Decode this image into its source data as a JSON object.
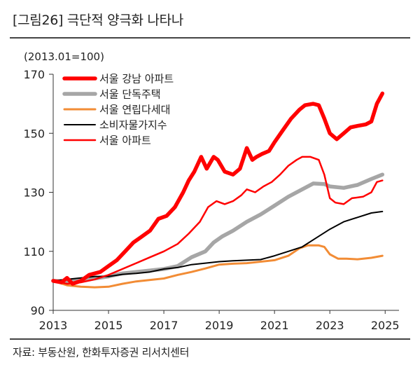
{
  "header": {
    "title": "[그림26]  극단적 양극화 나타나"
  },
  "footer": {
    "source": "자료: 부동산원, 한화투자증권 리서치센터"
  },
  "chart_data": {
    "type": "line",
    "unit_label": "(2013.01=100)",
    "xlabel": "",
    "ylabel": "",
    "xlim": [
      2013,
      2025.5
    ],
    "ylim": [
      90,
      170
    ],
    "x_ticks": [
      "2013",
      "2015",
      "2017",
      "2019",
      "2021",
      "2023",
      "2025"
    ],
    "y_ticks": [
      "90",
      "110",
      "130",
      "150",
      "170"
    ],
    "grid": false,
    "legend_position": "top-left",
    "series": [
      {
        "name": "서울 강남 아파트",
        "color": "#ff0000",
        "width": 5.5,
        "points": [
          [
            2013.0,
            100
          ],
          [
            2013.3,
            99.5
          ],
          [
            2013.5,
            101
          ],
          [
            2013.7,
            99
          ],
          [
            2014.0,
            100
          ],
          [
            2014.3,
            102
          ],
          [
            2014.7,
            103
          ],
          [
            2015.0,
            105
          ],
          [
            2015.3,
            107
          ],
          [
            2015.6,
            110
          ],
          [
            2015.9,
            113
          ],
          [
            2016.2,
            115
          ],
          [
            2016.5,
            117
          ],
          [
            2016.8,
            121
          ],
          [
            2017.1,
            122
          ],
          [
            2017.4,
            125
          ],
          [
            2017.7,
            130
          ],
          [
            2017.9,
            134
          ],
          [
            2018.1,
            137
          ],
          [
            2018.35,
            142
          ],
          [
            2018.55,
            138
          ],
          [
            2018.8,
            142
          ],
          [
            2018.95,
            141
          ],
          [
            2019.2,
            137
          ],
          [
            2019.5,
            136
          ],
          [
            2019.75,
            138
          ],
          [
            2020.0,
            145
          ],
          [
            2020.2,
            141
          ],
          [
            2020.35,
            142
          ],
          [
            2020.55,
            143
          ],
          [
            2020.8,
            144
          ],
          [
            2021.0,
            147
          ],
          [
            2021.3,
            151
          ],
          [
            2021.6,
            155
          ],
          [
            2021.9,
            158
          ],
          [
            2022.1,
            159.5
          ],
          [
            2022.4,
            160
          ],
          [
            2022.6,
            159.5
          ],
          [
            2022.8,
            155
          ],
          [
            2023.0,
            150
          ],
          [
            2023.25,
            148
          ],
          [
            2023.5,
            150
          ],
          [
            2023.75,
            152
          ],
          [
            2024.0,
            152.5
          ],
          [
            2024.3,
            153
          ],
          [
            2024.5,
            154
          ],
          [
            2024.7,
            160
          ],
          [
            2024.9,
            163.5
          ]
        ]
      },
      {
        "name": "서울 단독주택",
        "color": "#a6a6a6",
        "width": 5.5,
        "points": [
          [
            2013.0,
            100
          ],
          [
            2013.5,
            99.8
          ],
          [
            2014.0,
            100
          ],
          [
            2014.5,
            100.8
          ],
          [
            2015.0,
            101.5
          ],
          [
            2015.5,
            102.5
          ],
          [
            2016.0,
            103
          ],
          [
            2016.5,
            103.5
          ],
          [
            2017.0,
            104
          ],
          [
            2017.5,
            105
          ],
          [
            2018.0,
            108
          ],
          [
            2018.5,
            110
          ],
          [
            2018.8,
            113
          ],
          [
            2019.1,
            115
          ],
          [
            2019.5,
            117
          ],
          [
            2020.0,
            120
          ],
          [
            2020.5,
            122.5
          ],
          [
            2021.0,
            125.5
          ],
          [
            2021.5,
            128.5
          ],
          [
            2022.0,
            131
          ],
          [
            2022.4,
            133
          ],
          [
            2022.8,
            132.8
          ],
          [
            2023.0,
            132
          ],
          [
            2023.5,
            131.5
          ],
          [
            2024.0,
            132.5
          ],
          [
            2024.5,
            134.5
          ],
          [
            2024.9,
            136
          ]
        ]
      },
      {
        "name": "서울 연립다세대",
        "color": "#f28c35",
        "width": 3,
        "points": [
          [
            2013.0,
            100
          ],
          [
            2013.5,
            98.5
          ],
          [
            2014.0,
            98
          ],
          [
            2014.5,
            97.8
          ],
          [
            2015.0,
            98
          ],
          [
            2015.5,
            99
          ],
          [
            2016.0,
            99.8
          ],
          [
            2016.5,
            100.3
          ],
          [
            2017.0,
            100.8
          ],
          [
            2017.5,
            102
          ],
          [
            2018.0,
            103
          ],
          [
            2018.5,
            104.2
          ],
          [
            2019.0,
            105.5
          ],
          [
            2019.5,
            105.8
          ],
          [
            2020.0,
            106
          ],
          [
            2020.5,
            106.5
          ],
          [
            2021.0,
            107
          ],
          [
            2021.5,
            108.5
          ],
          [
            2021.9,
            111
          ],
          [
            2022.2,
            112
          ],
          [
            2022.6,
            112
          ],
          [
            2022.8,
            111.5
          ],
          [
            2023.0,
            109
          ],
          [
            2023.3,
            107.5
          ],
          [
            2023.6,
            107.5
          ],
          [
            2024.0,
            107.3
          ],
          [
            2024.5,
            107.8
          ],
          [
            2024.9,
            108.5
          ]
        ]
      },
      {
        "name": "소비자물가지수",
        "color": "#000000",
        "width": 2,
        "points": [
          [
            2013.0,
            100
          ],
          [
            2013.5,
            100.5
          ],
          [
            2014.0,
            101
          ],
          [
            2014.5,
            101.5
          ],
          [
            2015.0,
            101.5
          ],
          [
            2015.5,
            102.2
          ],
          [
            2016.0,
            102.5
          ],
          [
            2016.5,
            103
          ],
          [
            2017.0,
            104
          ],
          [
            2017.5,
            104.5
          ],
          [
            2018.0,
            105.5
          ],
          [
            2018.5,
            106
          ],
          [
            2019.0,
            106.5
          ],
          [
            2019.5,
            106.8
          ],
          [
            2020.0,
            107
          ],
          [
            2020.5,
            107.2
          ],
          [
            2021.0,
            108.5
          ],
          [
            2021.5,
            110
          ],
          [
            2022.0,
            111.5
          ],
          [
            2022.5,
            114.5
          ],
          [
            2023.0,
            117.5
          ],
          [
            2023.5,
            120
          ],
          [
            2024.0,
            121.5
          ],
          [
            2024.5,
            123
          ],
          [
            2024.9,
            123.5
          ]
        ]
      },
      {
        "name": "서울 아파트",
        "color": "#ff0000",
        "width": 2.5,
        "points": [
          [
            2013.0,
            100
          ],
          [
            2013.5,
            99
          ],
          [
            2014.0,
            99.5
          ],
          [
            2014.5,
            100.5
          ],
          [
            2015.0,
            102
          ],
          [
            2015.5,
            104
          ],
          [
            2016.0,
            106
          ],
          [
            2016.5,
            108
          ],
          [
            2017.0,
            110
          ],
          [
            2017.5,
            112.5
          ],
          [
            2017.9,
            116
          ],
          [
            2018.3,
            120
          ],
          [
            2018.6,
            125
          ],
          [
            2018.9,
            127
          ],
          [
            2019.2,
            126
          ],
          [
            2019.5,
            127
          ],
          [
            2019.8,
            129
          ],
          [
            2020.0,
            131
          ],
          [
            2020.3,
            130
          ],
          [
            2020.6,
            132
          ],
          [
            2020.9,
            133.5
          ],
          [
            2021.2,
            136
          ],
          [
            2021.5,
            139
          ],
          [
            2021.8,
            141
          ],
          [
            2022.0,
            142
          ],
          [
            2022.3,
            142
          ],
          [
            2022.6,
            141
          ],
          [
            2022.8,
            136
          ],
          [
            2023.0,
            128
          ],
          [
            2023.2,
            126.5
          ],
          [
            2023.5,
            126
          ],
          [
            2023.8,
            128
          ],
          [
            2024.2,
            128.5
          ],
          [
            2024.5,
            130
          ],
          [
            2024.7,
            133.5
          ],
          [
            2024.9,
            134
          ]
        ]
      }
    ]
  }
}
